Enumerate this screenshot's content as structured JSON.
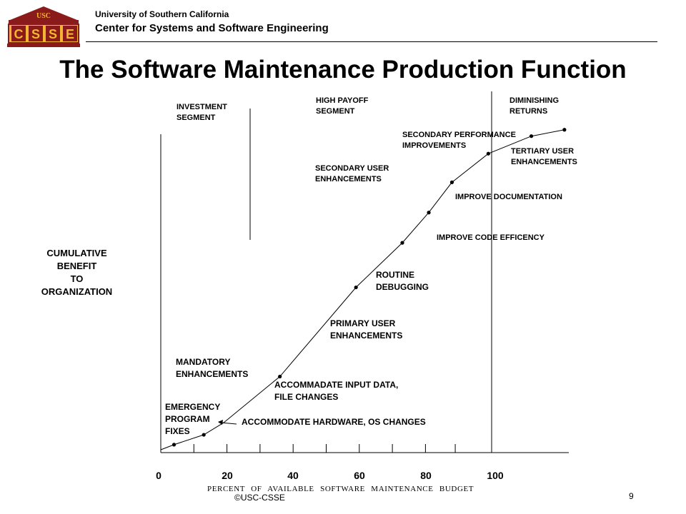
{
  "header": {
    "logo_top_text": "USC",
    "logo_letters": [
      "C",
      "S",
      "S",
      "E"
    ],
    "university": "University of Southern California",
    "center": "Center for Systems and Software Engineering"
  },
  "title": "The Software Maintenance Production Function",
  "colors": {
    "logo_maroon": "#8b1a1a",
    "logo_gold": "#f2b632",
    "line": "#000000"
  },
  "chart_data": {
    "type": "line",
    "title": "The Software Maintenance Production Function",
    "xlabel": "PERCENT   OF   AVAILABLE   SOFTWARE   MAINTENANCE   BUDGET",
    "ylabel": "CUMULATIVE\nBENEFIT\nTO\nORGANIZATION",
    "xlim": [
      0,
      120
    ],
    "ylim": [
      0,
      100
    ],
    "x_ticks": [
      0,
      20,
      40,
      60,
      80,
      100
    ],
    "x_tick_labels": [
      "0",
      "20",
      "40",
      "60",
      "80",
      "100"
    ],
    "minor_ticks": [
      10,
      20,
      30,
      40,
      50,
      60,
      70,
      80,
      89,
      100
    ],
    "segment_dividers": [
      27,
      100
    ],
    "curve": {
      "x": [
        0,
        4,
        13,
        19,
        36,
        59,
        73,
        81,
        88,
        99,
        112,
        122
      ],
      "y": [
        0,
        1.6,
        4.7,
        8.5,
        23,
        51,
        65,
        74.5,
        84,
        93,
        98.5,
        100.5
      ]
    },
    "points": {
      "x": [
        4,
        13,
        36,
        59,
        73,
        81,
        88,
        99,
        112,
        122
      ],
      "y": [
        1.6,
        4.7,
        23,
        51,
        65,
        74.5,
        84,
        93,
        98.5,
        100.5
      ]
    },
    "segment_labels": [
      {
        "text": "INVESTMENT\nSEGMENT"
      },
      {
        "text": "HIGH PAYOFF\nSEGMENT"
      },
      {
        "text": "DIMINISHING\nRETURNS"
      }
    ],
    "annotations": [
      "SECONDARY PERFORMANCE\nIMPROVEMENTS",
      "TERTIARY USER\nENHANCEMENTS",
      "SECONDARY USER\nENHANCEMENTS",
      "IMPROVE DOCUMENTATION",
      "IMPROVE CODE EFFICENCY",
      "ROUTINE\nDEBUGGING",
      "PRIMARY USER\nENHANCEMENTS",
      "MANDATORY\nENHANCEMENTS",
      "ACCOMMADATE  INPUT DATA,\nFILE CHANGES",
      "EMERGENCY\nPROGRAM\nFIXES",
      "ACCOMMODATE  HARDWARE,  OS CHANGES"
    ]
  },
  "footer": {
    "copyright": "©USC-CSSE",
    "page": "9"
  }
}
